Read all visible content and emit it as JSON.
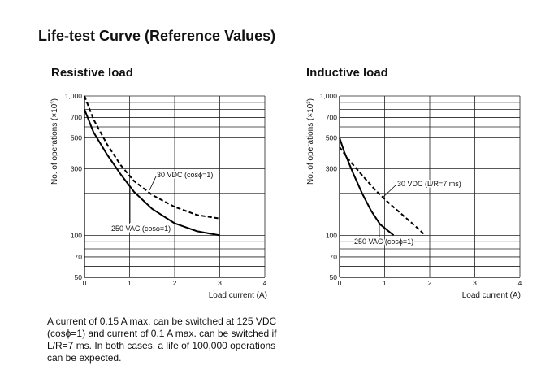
{
  "title": "Life-test Curve (Reference Values)",
  "note": "A current of 0.15 A max. can be switched at 125 VDC (cosϕ=1) and current of 0.1 A max. can be switched if L/R=7 ms. In both cases, a life of 100,000 operations can be expected.",
  "chart_data": [
    {
      "type": "line",
      "title": "Resistive load",
      "xlabel": "Load current (A)",
      "ylabel": "No. of operations (×10³)",
      "xlim": [
        0,
        4
      ],
      "ylim": [
        50,
        1000
      ],
      "y_scale": "log",
      "x_ticks": [
        "0",
        "1",
        "2",
        "3",
        "4"
      ],
      "y_ticks": [
        {
          "value": 1000,
          "label": "1,000"
        },
        {
          "value": 700,
          "label": "700"
        },
        {
          "value": 500,
          "label": "500"
        },
        {
          "value": 300,
          "label": "300"
        },
        {
          "value": 100,
          "label": "100"
        },
        {
          "value": 70,
          "label": "70"
        },
        {
          "value": 50,
          "label": "50"
        }
      ],
      "y_grid": [
        1000,
        900,
        800,
        700,
        600,
        500,
        300,
        200,
        100,
        90,
        80,
        70,
        60,
        50
      ],
      "series": [
        {
          "name": "250 VAC (cosϕ=1)",
          "style": "solid",
          "x": [
            0,
            0.2,
            0.5,
            0.8,
            1.1,
            1.5,
            2.0,
            2.5,
            3.0
          ],
          "y": [
            800,
            550,
            380,
            275,
            205,
            155,
            122,
            107,
            100
          ]
        },
        {
          "name": "30 VDC (cosϕ=1)",
          "style": "dashed",
          "x": [
            0,
            0.2,
            0.5,
            0.8,
            1.1,
            1.5,
            2.0,
            2.5,
            3.0
          ],
          "y": [
            1000,
            680,
            450,
            320,
            245,
            195,
            160,
            140,
            132
          ]
        }
      ]
    },
    {
      "type": "line",
      "title": "Inductive load",
      "xlabel": "Load current (A)",
      "ylabel": "No. of operations (×10³)",
      "xlim": [
        0,
        4
      ],
      "ylim": [
        50,
        1000
      ],
      "y_scale": "log",
      "x_ticks": [
        "0",
        "1",
        "2",
        "3",
        "4"
      ],
      "y_ticks": [
        {
          "value": 1000,
          "label": "1,000"
        },
        {
          "value": 700,
          "label": "700"
        },
        {
          "value": 500,
          "label": "500"
        },
        {
          "value": 300,
          "label": "300"
        },
        {
          "value": 100,
          "label": "100"
        },
        {
          "value": 70,
          "label": "70"
        },
        {
          "value": 50,
          "label": "50"
        }
      ],
      "y_grid": [
        1000,
        900,
        800,
        700,
        600,
        500,
        300,
        200,
        100,
        90,
        80,
        70,
        60,
        50
      ],
      "series": [
        {
          "name": "250 VAC (cosϕ=1)",
          "style": "solid",
          "x": [
            0,
            0.1,
            0.3,
            0.5,
            0.7,
            0.9,
            1.2
          ],
          "y": [
            500,
            400,
            280,
            200,
            150,
            120,
            100
          ]
        },
        {
          "name": "30 VDC (L/R=7 ms)",
          "style": "dashed",
          "x": [
            0,
            0.2,
            0.5,
            0.8,
            1.1,
            1.4,
            1.7,
            1.9
          ],
          "y": [
            430,
            350,
            270,
            210,
            170,
            140,
            115,
            100
          ]
        }
      ]
    }
  ]
}
